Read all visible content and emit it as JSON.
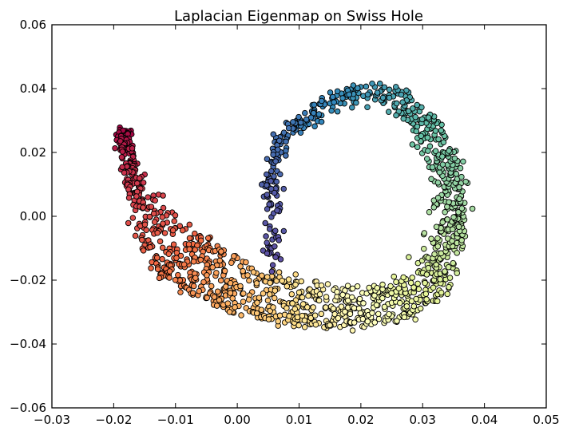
{
  "chart_data": {
    "type": "scatter",
    "title": "Laplacian Eigenmap on Swiss Hole",
    "xlabel": "",
    "ylabel": "",
    "xlim": [
      -0.03,
      0.05
    ],
    "ylim": [
      -0.06,
      0.06
    ],
    "x_ticks": [
      -0.03,
      -0.02,
      -0.01,
      0.0,
      0.01,
      0.02,
      0.03,
      0.04,
      0.05
    ],
    "x_tick_labels": [
      "−0.03",
      "−0.02",
      "−0.01",
      "0.00",
      "0.01",
      "0.02",
      "0.03",
      "0.04",
      "0.05"
    ],
    "y_ticks": [
      -0.06,
      -0.04,
      -0.02,
      0.0,
      0.02,
      0.04,
      0.06
    ],
    "y_tick_labels": [
      "−0.06",
      "−0.04",
      "−0.02",
      "0.00",
      "0.02",
      "0.04",
      "0.06"
    ],
    "grid": false,
    "colormap": "Spectral",
    "marker_edge_color": "#000000",
    "description_of_points": "Scatter of ~1500 points colored by position along the manifold (red → orange → yellow → green → teal → blue)",
    "path_control_points": [
      {
        "t": 0.0,
        "x": -0.019,
        "y": 0.028
      },
      {
        "t": 0.05,
        "x": -0.0185,
        "y": 0.02
      },
      {
        "t": 0.1,
        "x": -0.0175,
        "y": 0.008
      },
      {
        "t": 0.15,
        "x": -0.016,
        "y": -0.006
      },
      {
        "t": 0.2,
        "x": -0.013,
        "y": -0.018
      },
      {
        "t": 0.25,
        "x": -0.008,
        "y": -0.024
      },
      {
        "t": 0.3,
        "x": -0.002,
        "y": -0.029
      },
      {
        "t": 0.35,
        "x": 0.004,
        "y": -0.032
      },
      {
        "t": 0.4,
        "x": 0.01,
        "y": -0.034
      },
      {
        "t": 0.45,
        "x": 0.016,
        "y": -0.035
      },
      {
        "t": 0.5,
        "x": 0.022,
        "y": -0.034
      },
      {
        "t": 0.55,
        "x": 0.028,
        "y": -0.031
      },
      {
        "t": 0.6,
        "x": 0.033,
        "y": -0.025
      },
      {
        "t": 0.65,
        "x": 0.0362,
        "y": -0.013
      },
      {
        "t": 0.7,
        "x": 0.037,
        "y": 0.0
      },
      {
        "t": 0.75,
        "x": 0.036,
        "y": 0.015
      },
      {
        "t": 0.8,
        "x": 0.033,
        "y": 0.028
      },
      {
        "t": 0.85,
        "x": 0.027,
        "y": 0.04
      },
      {
        "t": 0.88,
        "x": 0.02,
        "y": 0.041
      },
      {
        "t": 0.91,
        "x": 0.013,
        "y": 0.036
      },
      {
        "t": 0.94,
        "x": 0.007,
        "y": 0.027
      },
      {
        "t": 0.97,
        "x": 0.005,
        "y": 0.01
      },
      {
        "t": 1.0,
        "x": 0.006,
        "y": -0.018
      }
    ],
    "thickness_control_points": [
      {
        "t": 0.0,
        "w": 0.001
      },
      {
        "t": 0.1,
        "w": 0.003
      },
      {
        "t": 0.2,
        "w": 0.014
      },
      {
        "t": 0.3,
        "w": 0.015
      },
      {
        "t": 0.45,
        "w": 0.014
      },
      {
        "t": 0.55,
        "w": 0.012
      },
      {
        "t": 0.65,
        "w": 0.006
      },
      {
        "t": 0.75,
        "w": 0.004
      },
      {
        "t": 0.85,
        "w": 0.006
      },
      {
        "t": 0.92,
        "w": 0.01
      },
      {
        "t": 1.0,
        "w": 0.004
      }
    ],
    "inner_fan_direction": {
      "cx": 0.006,
      "cy": 0.008
    },
    "n_points": 1500
  }
}
